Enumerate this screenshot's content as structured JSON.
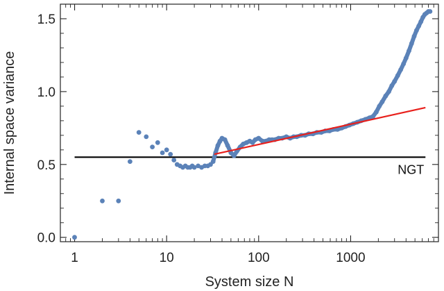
{
  "chart_data": {
    "type": "scatter",
    "title": "",
    "xlabel": "System size N",
    "ylabel": "Internal space variance",
    "x_scale": "log",
    "xlim": [
      0.7,
      9000
    ],
    "ylim": [
      -0.03,
      1.6
    ],
    "x_ticks": [
      {
        "value": 1,
        "label": "1"
      },
      {
        "value": 10,
        "label": "10"
      },
      {
        "value": 100,
        "label": "100"
      },
      {
        "value": 1000,
        "label": "1000"
      }
    ],
    "y_ticks": [
      {
        "value": 0.0,
        "label": "0.0"
      },
      {
        "value": 0.5,
        "label": "0.5"
      },
      {
        "value": 1.0,
        "label": "1.0"
      },
      {
        "value": 1.5,
        "label": "1.5"
      }
    ],
    "grid": false,
    "reference_line": {
      "value": 0.55,
      "x_range": [
        1,
        6500
      ],
      "color": "#000000",
      "label": "NGT"
    },
    "fit_line": {
      "color": "#e8201c",
      "points": [
        [
          33,
          0.57
        ],
        [
          6500,
          0.89
        ]
      ]
    },
    "series": [
      {
        "color": "#5b82b8",
        "points": [
          [
            1,
            0.0
          ],
          [
            2,
            0.25
          ],
          [
            3,
            0.25
          ],
          [
            4,
            0.52
          ],
          [
            5,
            0.72
          ],
          [
            6,
            0.69
          ],
          [
            7,
            0.62
          ],
          [
            8,
            0.65
          ],
          [
            9,
            0.58
          ],
          [
            10,
            0.6
          ],
          [
            11,
            0.57
          ],
          [
            12,
            0.53
          ],
          [
            13,
            0.5
          ],
          [
            14,
            0.49
          ],
          [
            15,
            0.48
          ],
          [
            16,
            0.49
          ],
          [
            17,
            0.48
          ],
          [
            18,
            0.48
          ],
          [
            19,
            0.49
          ],
          [
            20,
            0.48
          ],
          [
            22,
            0.49
          ],
          [
            24,
            0.48
          ],
          [
            26,
            0.49
          ],
          [
            28,
            0.49
          ],
          [
            30,
            0.5
          ],
          [
            32,
            0.52
          ],
          [
            34,
            0.58
          ],
          [
            36,
            0.63
          ],
          [
            38,
            0.66
          ],
          [
            40,
            0.68
          ],
          [
            43,
            0.67
          ],
          [
            46,
            0.63
          ],
          [
            50,
            0.58
          ],
          [
            54,
            0.56
          ],
          [
            58,
            0.59
          ],
          [
            63,
            0.62
          ],
          [
            68,
            0.64
          ],
          [
            74,
            0.65
          ],
          [
            80,
            0.66
          ],
          [
            86,
            0.65
          ],
          [
            92,
            0.67
          ],
          [
            100,
            0.68
          ],
          [
            110,
            0.66
          ],
          [
            120,
            0.66
          ],
          [
            130,
            0.67
          ],
          [
            140,
            0.67
          ],
          [
            150,
            0.67
          ],
          [
            165,
            0.68
          ],
          [
            180,
            0.68
          ],
          [
            200,
            0.69
          ],
          [
            220,
            0.68
          ],
          [
            240,
            0.69
          ],
          [
            260,
            0.69
          ],
          [
            290,
            0.7
          ],
          [
            320,
            0.7
          ],
          [
            350,
            0.71
          ],
          [
            390,
            0.71
          ],
          [
            430,
            0.72
          ],
          [
            480,
            0.72
          ],
          [
            530,
            0.73
          ],
          [
            590,
            0.73
          ],
          [
            650,
            0.74
          ],
          [
            720,
            0.74
          ],
          [
            800,
            0.75
          ],
          [
            880,
            0.76
          ],
          [
            970,
            0.77
          ],
          [
            1070,
            0.78
          ],
          [
            1180,
            0.79
          ],
          [
            1300,
            0.8
          ],
          [
            1450,
            0.81
          ],
          [
            1600,
            0.82
          ],
          [
            1750,
            0.83
          ],
          [
            1900,
            0.86
          ],
          [
            2050,
            0.9
          ],
          [
            2200,
            0.93
          ],
          [
            2400,
            0.97
          ],
          [
            2600,
            1.0
          ],
          [
            2800,
            1.04
          ],
          [
            3000,
            1.07
          ],
          [
            3250,
            1.11
          ],
          [
            3500,
            1.15
          ],
          [
            3750,
            1.19
          ],
          [
            4000,
            1.23
          ],
          [
            4300,
            1.28
          ],
          [
            4600,
            1.33
          ],
          [
            4900,
            1.38
          ],
          [
            5200,
            1.42
          ],
          [
            5500,
            1.45
          ],
          [
            5800,
            1.48
          ],
          [
            6100,
            1.51
          ],
          [
            6400,
            1.53
          ],
          [
            6700,
            1.54
          ],
          [
            7000,
            1.55
          ],
          [
            7300,
            1.55
          ]
        ]
      }
    ]
  }
}
